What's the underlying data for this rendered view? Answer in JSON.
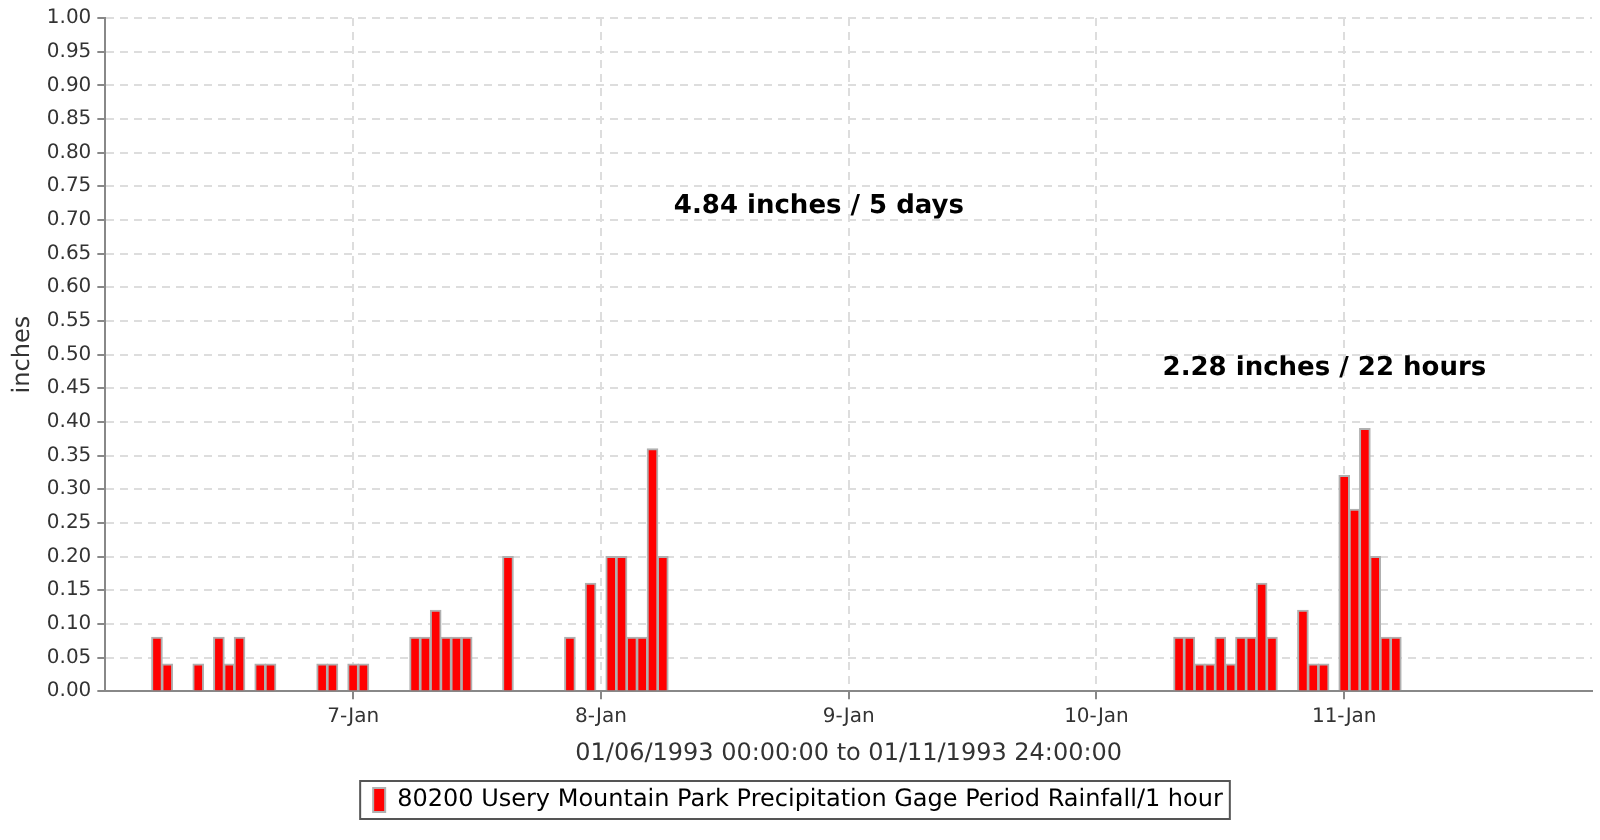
{
  "chart_data": {
    "type": "bar",
    "xlabel": "01/06/1993 00:00:00 to 01/11/1993 24:00:00",
    "ylabel": "inches",
    "x": [
      "1993-01-06T05:00",
      "1993-01-06T06:00",
      "1993-01-06T09:00",
      "1993-01-06T11:00",
      "1993-01-06T12:00",
      "1993-01-06T13:00",
      "1993-01-06T15:00",
      "1993-01-06T16:00",
      "1993-01-06T21:00",
      "1993-01-06T22:00",
      "1993-01-07T00:00",
      "1993-01-07T01:00",
      "1993-01-07T06:00",
      "1993-01-07T07:00",
      "1993-01-07T08:00",
      "1993-01-07T09:00",
      "1993-01-07T10:00",
      "1993-01-07T11:00",
      "1993-01-07T15:00",
      "1993-01-07T21:00",
      "1993-01-07T23:00",
      "1993-01-08T01:00",
      "1993-01-08T02:00",
      "1993-01-08T03:00",
      "1993-01-08T04:00",
      "1993-01-08T05:00",
      "1993-01-08T06:00",
      "1993-01-10T08:00",
      "1993-01-10T09:00",
      "1993-01-10T10:00",
      "1993-01-10T11:00",
      "1993-01-10T12:00",
      "1993-01-10T13:00",
      "1993-01-10T14:00",
      "1993-01-10T15:00",
      "1993-01-10T16:00",
      "1993-01-10T17:00",
      "1993-01-10T20:00",
      "1993-01-10T21:00",
      "1993-01-10T22:00",
      "1993-01-11T00:00",
      "1993-01-11T01:00",
      "1993-01-11T02:00",
      "1993-01-11T03:00",
      "1993-01-11T04:00",
      "1993-01-11T05:00"
    ],
    "series": [
      {
        "name": "80200 Usery Mountain Park Precipitation Gage Period Rainfall/1 hour",
        "color": "#ff0000",
        "values": [
          0.08,
          0.04,
          0.04,
          0.08,
          0.04,
          0.08,
          0.04,
          0.04,
          0.04,
          0.04,
          0.04,
          0.04,
          0.08,
          0.08,
          0.12,
          0.08,
          0.08,
          0.08,
          0.2,
          0.08,
          0.16,
          0.2,
          0.2,
          0.08,
          0.08,
          0.36,
          0.2,
          0.08,
          0.08,
          0.04,
          0.04,
          0.08,
          0.04,
          0.08,
          0.08,
          0.16,
          0.08,
          0.12,
          0.04,
          0.04,
          0.32,
          0.27,
          0.39,
          0.2,
          0.08,
          0.08
        ]
      }
    ],
    "xlim": [
      "1993-01-06T00:00",
      "1993-01-12T00:00"
    ],
    "xticks": [
      {
        "value": "1993-01-07T00:00",
        "label": "7-Jan"
      },
      {
        "value": "1993-01-08T00:00",
        "label": "8-Jan"
      },
      {
        "value": "1993-01-09T00:00",
        "label": "9-Jan"
      },
      {
        "value": "1993-01-10T00:00",
        "label": "10-Jan"
      },
      {
        "value": "1993-01-11T00:00",
        "label": "11-Jan"
      }
    ],
    "ylim": [
      0,
      1
    ],
    "yticks": [
      {
        "value": 0,
        "label": "0.00"
      },
      {
        "value": 0.05,
        "label": "0.05"
      },
      {
        "value": 0.1,
        "label": "0.10"
      },
      {
        "value": 0.15,
        "label": "0.15"
      },
      {
        "value": 0.2,
        "label": "0.20"
      },
      {
        "value": 0.25,
        "label": "0.25"
      },
      {
        "value": 0.3,
        "label": "0.30"
      },
      {
        "value": 0.35,
        "label": "0.35"
      },
      {
        "value": 0.4,
        "label": "0.40"
      },
      {
        "value": 0.45,
        "label": "0.45"
      },
      {
        "value": 0.5,
        "label": "0.50"
      },
      {
        "value": 0.55,
        "label": "0.55"
      },
      {
        "value": 0.6,
        "label": "0.60"
      },
      {
        "value": 0.65,
        "label": "0.65"
      },
      {
        "value": 0.7,
        "label": "0.70"
      },
      {
        "value": 0.75,
        "label": "0.75"
      },
      {
        "value": 0.8,
        "label": "0.80"
      },
      {
        "value": 0.85,
        "label": "0.85"
      },
      {
        "value": 0.9,
        "label": "0.90"
      },
      {
        "value": 0.95,
        "label": "0.95"
      },
      {
        "value": 1,
        "label": "1.00"
      }
    ],
    "annotations": [
      "4.84 inches / 5 days",
      "2.28 inches / 22 hours"
    ],
    "grid": true,
    "legend": "bottom"
  }
}
